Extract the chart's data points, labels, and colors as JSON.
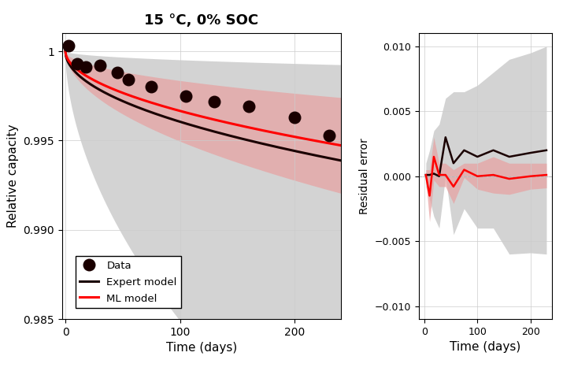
{
  "title": "15 °C, 0% SOC",
  "xlabel_main": "Time (days)",
  "ylabel_main": "Relative capacity",
  "xlabel_residual": "Time (days)",
  "ylabel_residual": "Residual error",
  "ylim_main": [
    0.985,
    1.001
  ],
  "xlim_main": [
    -3,
    240
  ],
  "ylim_residual": [
    -0.011,
    0.011
  ],
  "xlim_residual": [
    -10,
    240
  ],
  "data_points_x": [
    3,
    10,
    18,
    30,
    45,
    55,
    75,
    105,
    130,
    160,
    200,
    230
  ],
  "data_points_y": [
    1.0003,
    0.9993,
    0.9991,
    0.9992,
    0.9988,
    0.9984,
    0.998,
    0.9975,
    0.9972,
    0.9969,
    0.9963,
    0.9953
  ],
  "color_expert": "#1a0000",
  "color_ml": "#ff0000",
  "color_data": "#1a0000",
  "color_expert_fill": "#b0b0b0",
  "color_ml_fill": "#e8a0a0",
  "legend_labels": [
    "Data",
    "Expert model",
    "ML model"
  ],
  "residual_x": [
    3,
    10,
    18,
    28,
    40,
    55,
    75,
    100,
    130,
    160,
    200,
    230
  ],
  "residual_expert_y": [
    0.0001,
    0.0001,
    0.0002,
    0.0,
    0.003,
    0.001,
    0.002,
    0.0015,
    0.002,
    0.0015,
    0.0018,
    0.002
  ],
  "residual_expert_upper": [
    0.001,
    0.002,
    0.0035,
    0.004,
    0.006,
    0.0065,
    0.0065,
    0.007,
    0.008,
    0.009,
    0.0095,
    0.01
  ],
  "residual_expert_lower": [
    -0.0008,
    -0.0018,
    -0.0031,
    -0.004,
    -0.0,
    -0.0045,
    -0.0025,
    -0.004,
    -0.004,
    -0.006,
    -0.0059,
    -0.006
  ],
  "residual_ml_y": [
    0.0001,
    -0.0015,
    0.0015,
    0.0001,
    0.0001,
    -0.0008,
    0.0005,
    0.0,
    0.0001,
    -0.0002,
    0.0,
    0.0001
  ],
  "residual_ml_upper": [
    0.0005,
    0.0005,
    0.003,
    0.001,
    0.001,
    0.0005,
    0.001,
    0.001,
    0.0015,
    0.001,
    0.001,
    0.001
  ],
  "residual_ml_lower": [
    -0.0003,
    -0.0035,
    -0.0003,
    -0.0008,
    -0.0008,
    -0.0021,
    -0.0001,
    -0.001,
    -0.0013,
    -0.0014,
    -0.001,
    -0.0009
  ]
}
